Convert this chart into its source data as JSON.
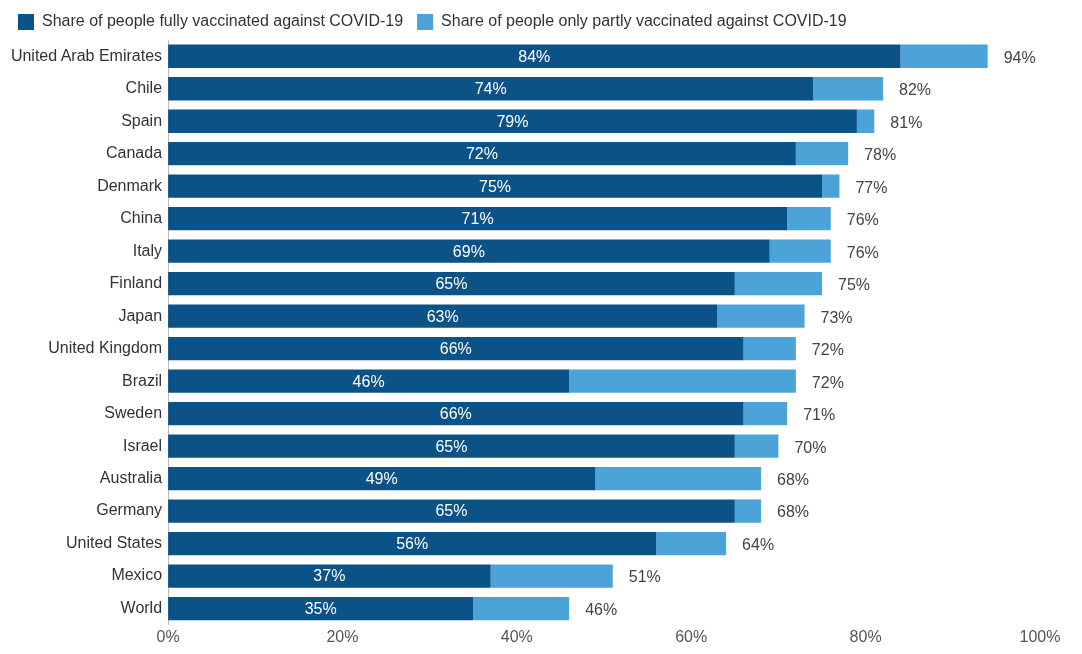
{
  "chart_data": {
    "type": "bar",
    "orientation": "horizontal",
    "stacked": true,
    "categories": [
      "United Arab Emirates",
      "Chile",
      "Spain",
      "Canada",
      "Denmark",
      "China",
      "Italy",
      "Finland",
      "Japan",
      "United Kingdom",
      "Brazil",
      "Sweden",
      "Israel",
      "Australia",
      "Germany",
      "United States",
      "Mexico",
      "World"
    ],
    "series": [
      {
        "name": "Share of people fully vaccinated against COVID-19",
        "color": "#0b5287",
        "values": [
          84,
          74,
          79,
          72,
          75,
          71,
          69,
          65,
          63,
          66,
          46,
          66,
          65,
          49,
          65,
          56,
          37,
          35
        ],
        "value_labels": [
          "84%",
          "74%",
          "79%",
          "72%",
          "75%",
          "71%",
          "69%",
          "65%",
          "63%",
          "66%",
          "46%",
          "66%",
          "65%",
          "49%",
          "65%",
          "56%",
          "37%",
          "35%"
        ]
      },
      {
        "name": "Share of people only partly vaccinated against COVID-19",
        "color": "#4ba3d8",
        "values": [
          10,
          8,
          2,
          6,
          2,
          5,
          7,
          10,
          10,
          6,
          26,
          5,
          5,
          19,
          3,
          8,
          14,
          11
        ]
      }
    ],
    "totals": [
      "94%",
      "82%",
      "81%",
      "78%",
      "77%",
      "76%",
      "76%",
      "75%",
      "73%",
      "72%",
      "72%",
      "71%",
      "70%",
      "68%",
      "68%",
      "64%",
      "51%",
      "46%"
    ],
    "xlim": [
      0,
      100
    ],
    "xticks": [
      {
        "value": 0,
        "label": "0%"
      },
      {
        "value": 20,
        "label": "20%"
      },
      {
        "value": 40,
        "label": "40%"
      },
      {
        "value": 60,
        "label": "60%"
      },
      {
        "value": 80,
        "label": "80%"
      },
      {
        "value": 100,
        "label": "100%"
      }
    ],
    "legend": "top left"
  }
}
